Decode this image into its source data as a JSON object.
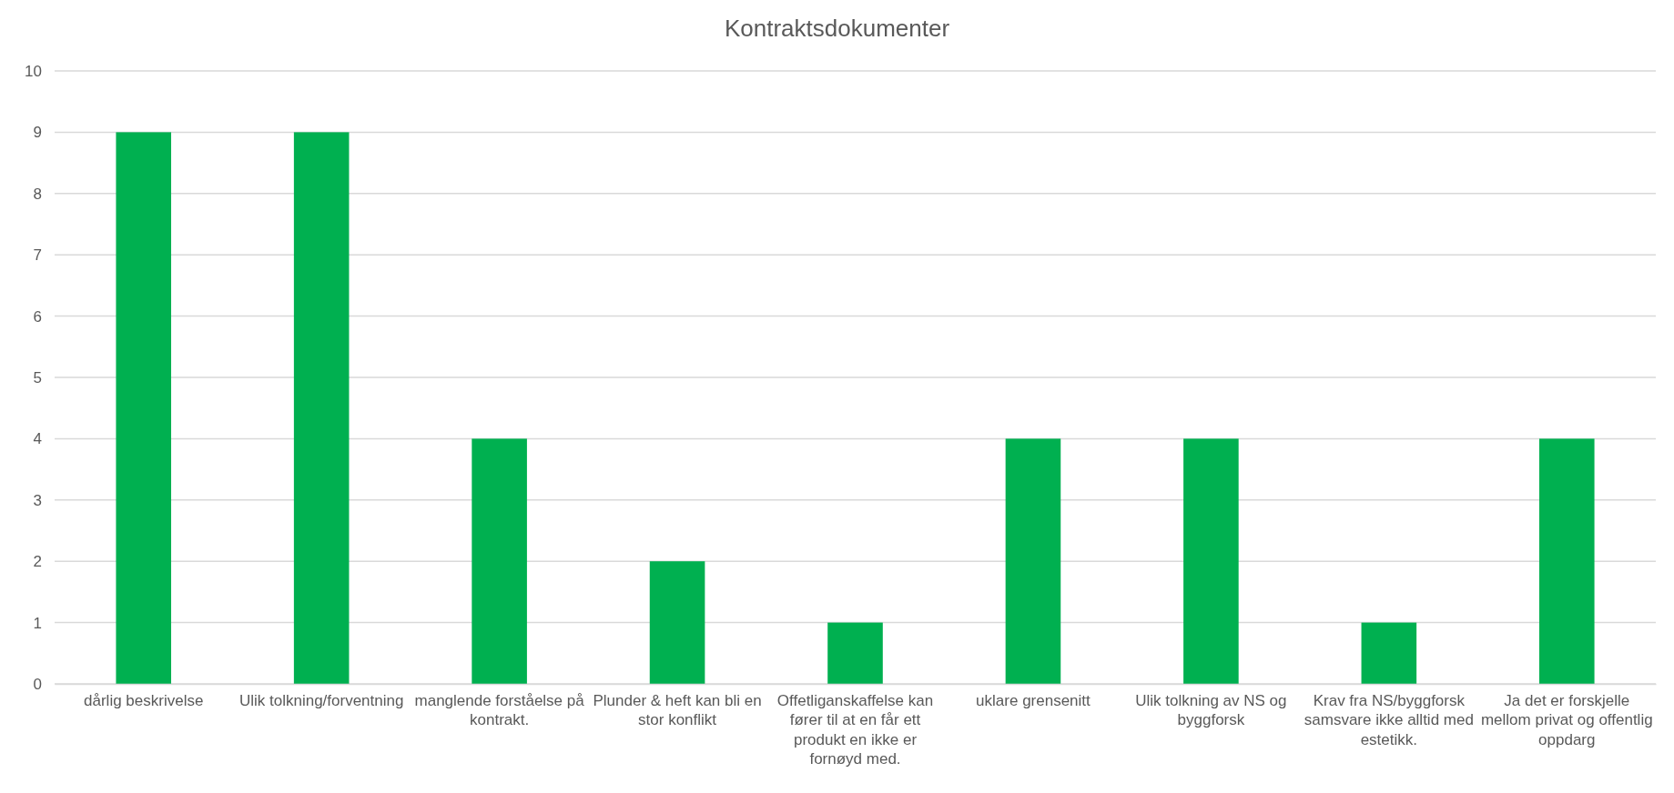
{
  "chart_data": {
    "type": "bar",
    "title": "Kontraktsdokumenter",
    "categories": [
      "dårlig beskrivelse",
      "Ulik tolkning/forventning",
      "manglende forståelse på kontrakt.",
      "Plunder & heft kan bli en stor konflikt",
      "Offetliganskaffelse kan fører til at en får ett produkt en ikke er fornøyd med.",
      "uklare grensenitt",
      "Ulik tolkning av NS og byggforsk",
      "Krav fra NS/byggforsk samsvare ikke alltid med estetikk.",
      "Ja det er forskjelle mellom privat og offentlig oppdarg"
    ],
    "values": [
      9,
      9,
      4,
      2,
      1,
      4,
      4,
      1,
      4
    ],
    "color": "#00b050",
    "ylim": [
      0,
      10
    ],
    "yticks": [
      0,
      1,
      2,
      3,
      4,
      5,
      6,
      7,
      8,
      9,
      10
    ],
    "grid": "y"
  }
}
